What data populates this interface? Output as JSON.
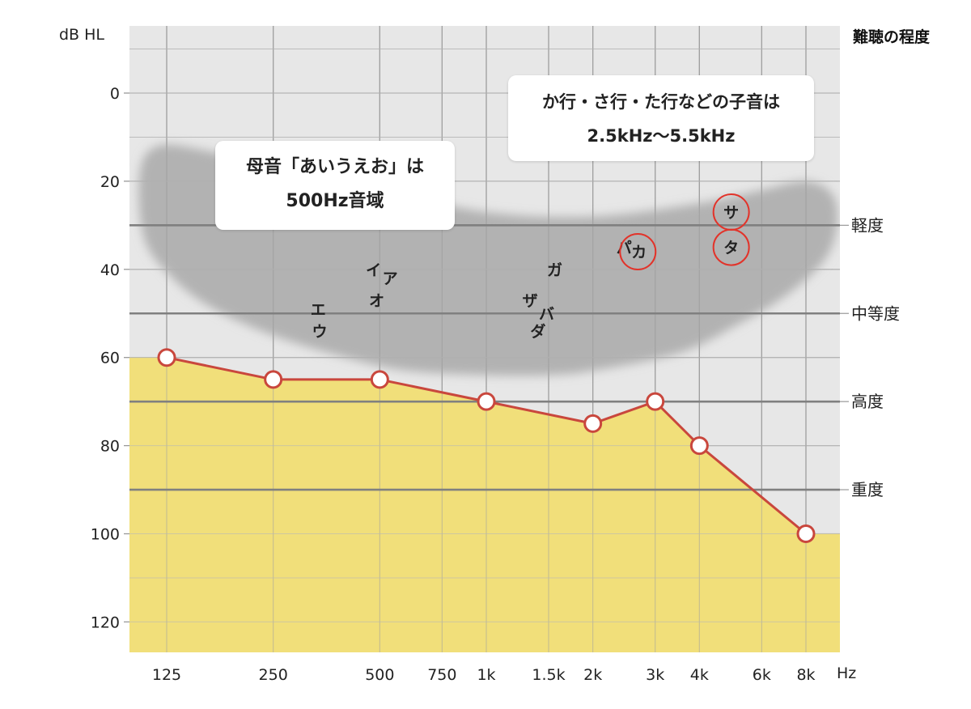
{
  "chart_data": {
    "type": "line",
    "title": "",
    "xlabel": "Hz",
    "ylabel": "dB HL",
    "x_scale": "log",
    "x_ticks": [
      {
        "value": 125,
        "label": "125"
      },
      {
        "value": 250,
        "label": "250"
      },
      {
        "value": 500,
        "label": "500"
      },
      {
        "value": 750,
        "label": "750"
      },
      {
        "value": 1000,
        "label": "1k"
      },
      {
        "value": 1500,
        "label": "1.5k"
      },
      {
        "value": 2000,
        "label": "2k"
      },
      {
        "value": 3000,
        "label": "3k"
      },
      {
        "value": 4000,
        "label": "4k"
      },
      {
        "value": 6000,
        "label": "6k"
      },
      {
        "value": 8000,
        "label": "8k"
      }
    ],
    "y_ticks": [
      {
        "value": 0,
        "label": "0"
      },
      {
        "value": 20,
        "label": "20"
      },
      {
        "value": 40,
        "label": "40"
      },
      {
        "value": 60,
        "label": "60"
      },
      {
        "value": 80,
        "label": "80"
      },
      {
        "value": 100,
        "label": "100"
      },
      {
        "value": 120,
        "label": "120"
      }
    ],
    "ylim": [
      -15,
      127
    ],
    "y_inverted": true,
    "grid": true,
    "series": [
      {
        "name": "",
        "x": [
          125,
          250,
          500,
          1000,
          2000,
          3000,
          4000,
          8000
        ],
        "y": [
          60,
          65,
          65,
          70,
          75,
          70,
          80,
          100
        ]
      }
    ],
    "severity_title": "難聴の程度",
    "severity_levels": [
      {
        "value": 30,
        "label": "軽度"
      },
      {
        "value": 50,
        "label": "中等度"
      },
      {
        "value": 70,
        "label": "高度"
      },
      {
        "value": 90,
        "label": "重度"
      }
    ],
    "speech_banana": [
      {
        "x": 105,
        "y": 18
      },
      {
        "x": 118,
        "y": 12
      },
      {
        "x": 160,
        "y": 13
      },
      {
        "x": 250,
        "y": 17
      },
      {
        "x": 500,
        "y": 22
      },
      {
        "x": 1000,
        "y": 27
      },
      {
        "x": 2000,
        "y": 28
      },
      {
        "x": 4000,
        "y": 25
      },
      {
        "x": 6000,
        "y": 22
      },
      {
        "x": 8000,
        "y": 20
      },
      {
        "x": 9500,
        "y": 23
      },
      {
        "x": 9800,
        "y": 30
      },
      {
        "x": 9000,
        "y": 38
      },
      {
        "x": 7000,
        "y": 46
      },
      {
        "x": 5000,
        "y": 53
      },
      {
        "x": 3500,
        "y": 59
      },
      {
        "x": 2000,
        "y": 63
      },
      {
        "x": 1500,
        "y": 64
      },
      {
        "x": 1000,
        "y": 64
      },
      {
        "x": 600,
        "y": 63
      },
      {
        "x": 400,
        "y": 60
      },
      {
        "x": 250,
        "y": 55
      },
      {
        "x": 170,
        "y": 49
      },
      {
        "x": 130,
        "y": 42
      },
      {
        "x": 108,
        "y": 33
      }
    ],
    "phonemes": [
      {
        "text": "エ",
        "x": 335,
        "y": 49
      },
      {
        "text": "ウ",
        "x": 338,
        "y": 54
      },
      {
        "text": "イ",
        "x": 480,
        "y": 40
      },
      {
        "text": "ア",
        "x": 535,
        "y": 42
      },
      {
        "text": "オ",
        "x": 490,
        "y": 47
      },
      {
        "text": "ザ",
        "x": 1330,
        "y": 47
      },
      {
        "text": "バ",
        "x": 1480,
        "y": 50
      },
      {
        "text": "ダ",
        "x": 1400,
        "y": 54
      },
      {
        "text": "ガ",
        "x": 1560,
        "y": 40
      },
      {
        "text": "パ",
        "x": 2450,
        "y": 35
      },
      {
        "text": "カ",
        "x": 2700,
        "y": 36
      },
      {
        "text": "サ",
        "x": 4920,
        "y": 27
      },
      {
        "text": "タ",
        "x": 4920,
        "y": 35
      }
    ],
    "highlighted_phonemes": [
      {
        "text": "カ",
        "x": 2680,
        "y": 36
      },
      {
        "text": "サ",
        "x": 4920,
        "y": 27
      },
      {
        "text": "タ",
        "x": 4920,
        "y": 35
      }
    ],
    "annotations": [
      {
        "id": "vowel",
        "lines": [
          "母音「あいうえお」は",
          "500Hz音域"
        ]
      },
      {
        "id": "consonant",
        "lines": [
          "か行・さ行・た行などの子音は",
          "2.5kHz〜5.5kHz"
        ]
      }
    ],
    "colors": {
      "plot_bg": "#e7e7e7",
      "fill_below": "#f1df7a",
      "banana": "#a9a9a9",
      "line": "#c9473d",
      "highlight_circle": "#e2332a",
      "grid": "#a0a0a0",
      "severity_line": "#808080"
    }
  }
}
